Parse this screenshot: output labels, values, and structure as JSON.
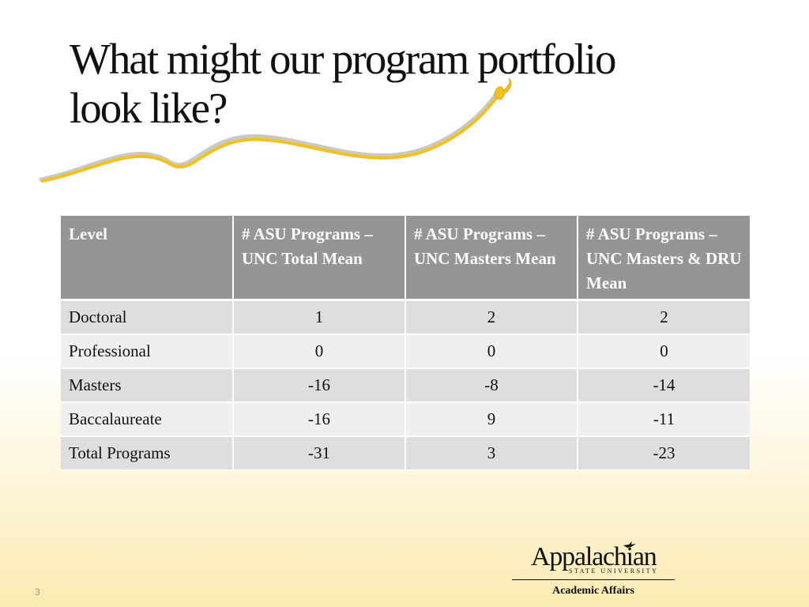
{
  "slide": {
    "title_line1": "What might our program portfolio",
    "title_line2": "look like?",
    "number": "3"
  },
  "table": {
    "headers": [
      "Level",
      "# ASU Programs –  UNC Total Mean",
      "# ASU Programs – UNC Masters Mean",
      "# ASU Programs – UNC Masters & DRU Mean"
    ],
    "rows": [
      {
        "level": "Doctoral",
        "total_mean": "1",
        "masters_mean": "2",
        "masters_dru_mean": "2"
      },
      {
        "level": "Professional",
        "total_mean": "0",
        "masters_mean": "0",
        "masters_dru_mean": "0"
      },
      {
        "level": "Masters",
        "total_mean": "-16",
        "masters_mean": "-8",
        "masters_dru_mean": "-14"
      },
      {
        "level": "Baccalaureate",
        "total_mean": "-16",
        "masters_mean": "9",
        "masters_dru_mean": "-11"
      },
      {
        "level": "Total Programs",
        "total_mean": "-31",
        "masters_mean": "3",
        "masters_dru_mean": "-23"
      }
    ]
  },
  "logo": {
    "name": "Appalachian",
    "subtitle": "STATE UNIVERSITY",
    "department": "Academic Affairs"
  },
  "colors": {
    "header_bg": "#959595",
    "row_dark": "#dedede",
    "row_light": "#efefef",
    "swoosh_gold": "#f2c21a"
  },
  "icons": {
    "swoosh": "yellow-swoosh-with-bird",
    "logo_mark": "bird-icon"
  }
}
